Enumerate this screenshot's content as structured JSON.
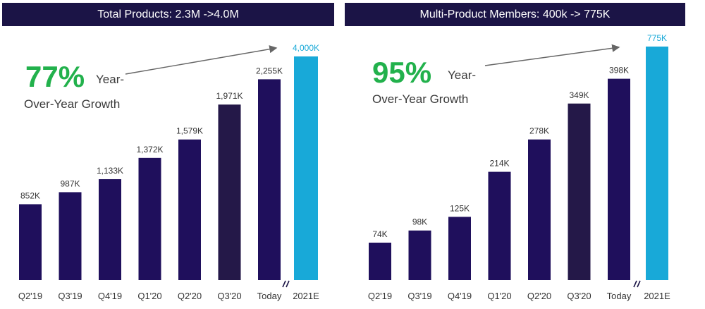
{
  "panels": [
    {
      "header": "Total Products: 2.3M ->4.0M",
      "growth_pct": "77%",
      "growth_word": "Year-",
      "growth_desc": "Over-Year Growth"
    },
    {
      "header": "Multi-Product Members: 400k -> 775K",
      "growth_pct": "95%",
      "growth_word": "Year-",
      "growth_desc": "Over-Year Growth"
    }
  ],
  "colors": {
    "header_bg": "#1b1446",
    "bar_dark": "#1f0f5c",
    "bar_darker": "#241848",
    "bar_estimate": "#18a9d8",
    "growth_green": "#22b14c",
    "axis_break": "#1b1446"
  },
  "chart_data": [
    {
      "type": "bar",
      "title": "Total Products: 2.3M ->4.0M",
      "categories": [
        "Q2'19",
        "Q3'19",
        "Q4'19",
        "Q1'20",
        "Q2'20",
        "Q3'20",
        "Today",
        "2021E"
      ],
      "values": [
        852,
        987,
        1133,
        1372,
        1579,
        1971,
        2255,
        4000
      ],
      "data_labels": [
        "852K",
        "987K",
        "1,133K",
        "1,372K",
        "1,579K",
        "1,971K",
        "2,255K",
        "4,000K"
      ],
      "unit": "K",
      "axis_break_before": "2021E",
      "estimate_category": "2021E",
      "ylim": [
        0,
        2670
      ]
    },
    {
      "type": "bar",
      "title": "Multi-Product Members: 400k -> 775K",
      "categories": [
        "Q2'19",
        "Q3'19",
        "Q4'19",
        "Q1'20",
        "Q2'20",
        "Q3'20",
        "Today",
        "2021E"
      ],
      "values": [
        74,
        98,
        125,
        214,
        278,
        349,
        398,
        775
      ],
      "data_labels": [
        "74K",
        "98K",
        "125K",
        "214K",
        "278K",
        "349K",
        "398K",
        "775K"
      ],
      "unit": "K",
      "axis_break_before": "2021E",
      "estimate_category": "2021E",
      "ylim": [
        0,
        470
      ]
    }
  ]
}
